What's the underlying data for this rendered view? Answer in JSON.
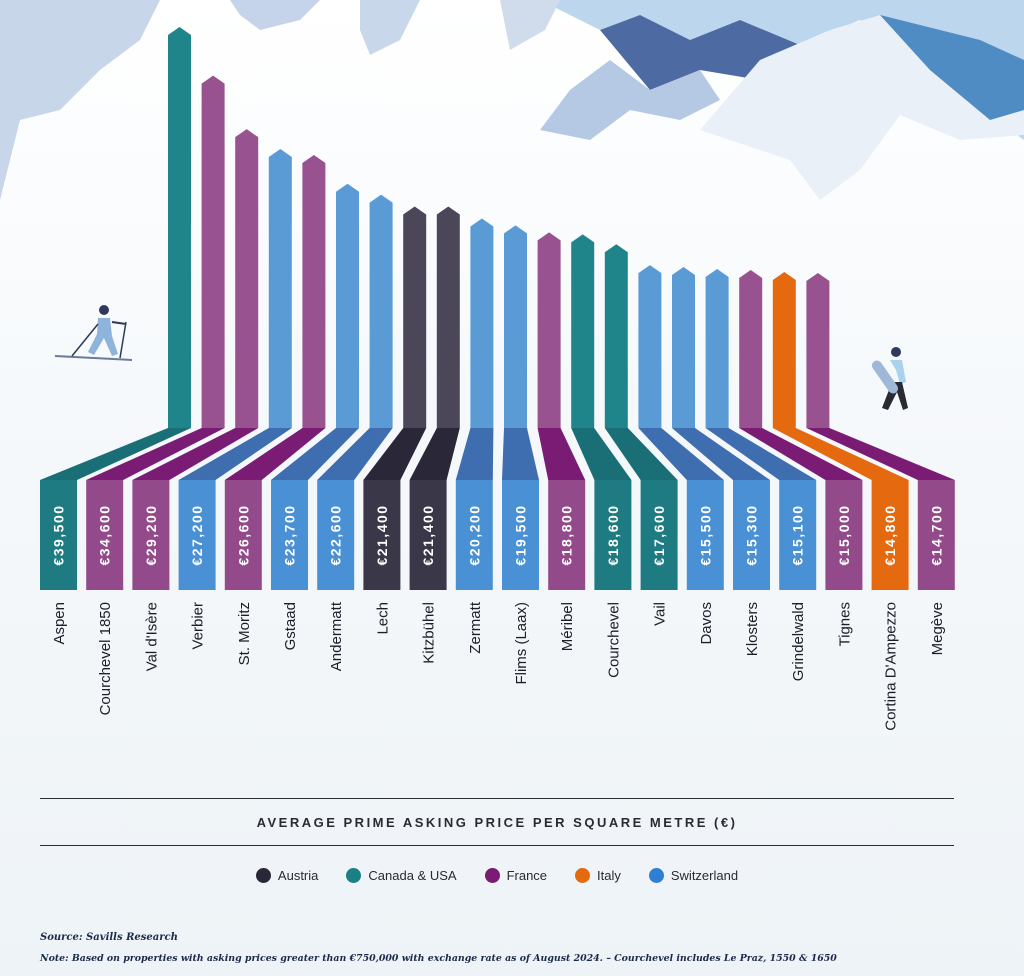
{
  "chart_data": {
    "type": "bar",
    "title": "",
    "xlabel": "",
    "ylabel": "",
    "axis_title": "AVERAGE PRIME ASKING PRICE PER SQUARE METRE (€)",
    "categories": [
      "Aspen",
      "Courchevel 1850",
      "Val d'Isère",
      "Verbier",
      "St. Moritz",
      "Gstaad",
      "Andermatt",
      "Lech",
      "Kitzbühel",
      "Zermatt",
      "Flims (Laax)",
      "Méribel",
      "Courchevel",
      "Vail",
      "Davos",
      "Klosters",
      "Grindelwald",
      "Tignes",
      "Cortina D'Ampezzo",
      "Megève"
    ],
    "values": [
      39500,
      34600,
      29200,
      27200,
      26600,
      23700,
      22600,
      21400,
      21400,
      20200,
      19500,
      18800,
      18600,
      17600,
      15500,
      15300,
      15100,
      15000,
      14800,
      14700
    ],
    "value_labels": [
      "€39,500",
      "€34,600",
      "€29,200",
      "€27,200",
      "€26,600",
      "€23,700",
      "€22,600",
      "€21,400",
      "€21,400",
      "€20,200",
      "€19,500",
      "€18,800",
      "€18,600",
      "€17,600",
      "€15,500",
      "€15,300",
      "€15,100",
      "€15,000",
      "€14,800",
      "€14,700"
    ],
    "regions": [
      "Canada & USA",
      "France",
      "France",
      "Switzerland",
      "France",
      "Switzerland",
      "Switzerland",
      "Austria",
      "Austria",
      "Switzerland",
      "Switzerland",
      "France",
      "Canada & USA",
      "Canada & USA",
      "Switzerland",
      "Switzerland",
      "Switzerland",
      "France",
      "Italy",
      "France"
    ],
    "legend": [
      {
        "name": "Austria",
        "color": "#2a2838"
      },
      {
        "name": "Canada & USA",
        "color": "#1c7f86"
      },
      {
        "name": "France",
        "color": "#7a1c74"
      },
      {
        "name": "Italy",
        "color": "#e56a0f"
      },
      {
        "name": "Switzerland",
        "color": "#2f7fd4"
      }
    ],
    "legend_placement": "bottom",
    "grid": false
  },
  "colors": {
    "Austria": {
      "upper": "#4b4759",
      "lower": "#2a2838",
      "box": "#3a3749"
    },
    "Canada & USA": {
      "upper": "#20858b",
      "lower": "#1a6e75",
      "box": "#1e7b82"
    },
    "France": {
      "upper": "#97528f",
      "lower": "#7a1c74",
      "box": "#924a8b"
    },
    "Italy": {
      "upper": "#e56a0f",
      "lower": "#e56a0f",
      "box": "#e56a0f"
    },
    "Switzerland": {
      "upper": "#5a9bd5",
      "lower": "#3e6db0",
      "box": "#4a90d4"
    }
  },
  "source": "Source: Savills Research",
  "note": "Note: Based on properties with asking prices greater than €750,000 with exchange rate as of August 2024. – Courchevel includes Le Praz, 1550 & 1650"
}
